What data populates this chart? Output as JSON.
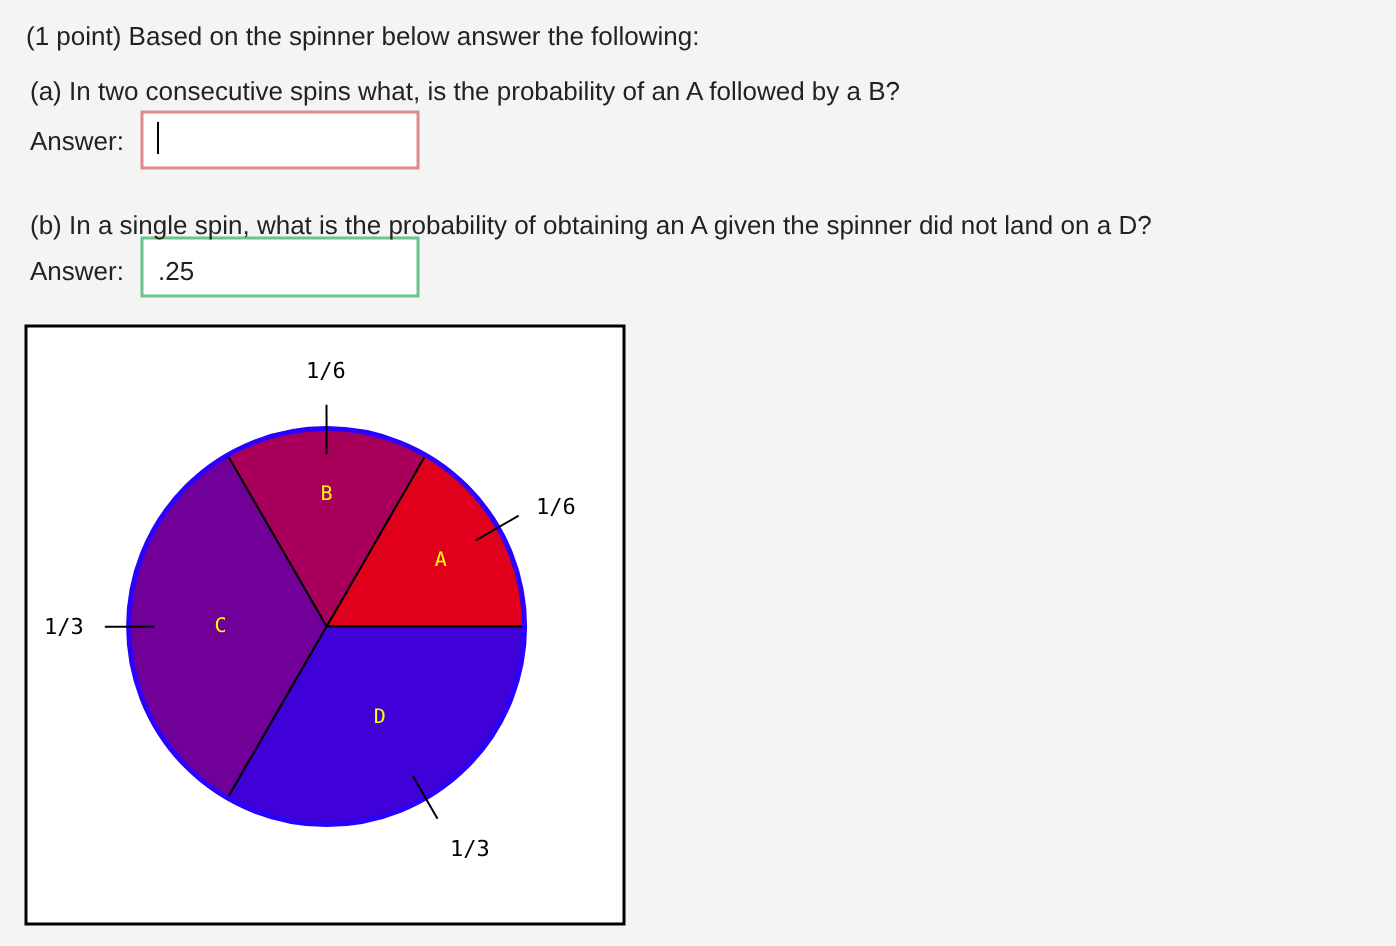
{
  "chart_data": {
    "type": "pie",
    "title": "(1 point) Based on the spinner below answer the following:",
    "categories": [
      "A",
      "B",
      "C",
      "D"
    ],
    "values": [
      0.1667,
      0.1667,
      0.3333,
      0.3333
    ],
    "value_labels": [
      "1/6",
      "1/6",
      "1/3",
      "1/3"
    ],
    "colors": [
      "#e0001c",
      "#a8005a",
      "#700098",
      "#4000d8"
    ],
    "annotations": [
      "(a) In two consecutive spins what, is the probability of an A followed by a B?",
      "Answer:",
      "(b) In a single spin, what is the probability of obtaining an A given the spinner did not land on a D?",
      "Answer:",
      ".25"
    ]
  }
}
